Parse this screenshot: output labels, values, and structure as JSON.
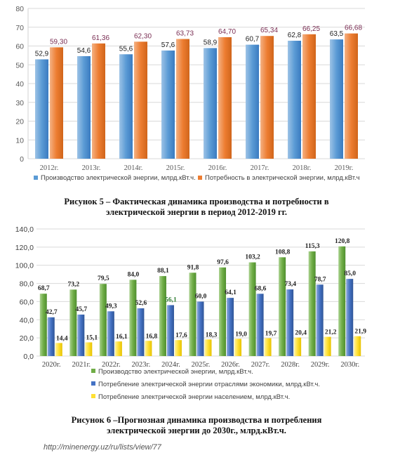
{
  "chart_data": [
    {
      "type": "bar",
      "categories": [
        "2012г.",
        "2013г.",
        "2014г.",
        "2015г.",
        "2016г.",
        "2017г.",
        "2018г.",
        "2019г."
      ],
      "series": [
        {
          "name": "Производство электрической энергии, млрд.кВт.ч.",
          "values": [
            52.9,
            54.6,
            55.6,
            57.6,
            58.9,
            60.7,
            62.8,
            63.5
          ],
          "labels": [
            "52,9",
            "54,6",
            "55,6",
            "57,6",
            "58,9",
            "60,7",
            "62,8",
            "63,5"
          ]
        },
        {
          "name": "Потребность в электрической энергии, млрд.кВт.ч",
          "values": [
            59.3,
            61.36,
            62.3,
            63.73,
            64.7,
            65.34,
            66.25,
            66.68
          ],
          "labels": [
            "59,30",
            "61,36",
            "62,30",
            "63,73",
            "64,70",
            "65,34",
            "66,25",
            "66,68"
          ]
        }
      ],
      "ylim": [
        0,
        80
      ],
      "yticks": [
        "0",
        "10",
        "20",
        "30",
        "40",
        "50",
        "60",
        "70",
        "80"
      ],
      "grid": true,
      "legend": "bottom",
      "colors": {
        "production": "#5b9bd5",
        "demand": "#ed7d31",
        "label_demand": "#7a2e53",
        "label_production": "#222222"
      }
    },
    {
      "type": "bar",
      "categories": [
        "2020г.",
        "2021г.",
        "2022г.",
        "2023г.",
        "2024г.",
        "2025г.",
        "2026г.",
        "2027г.",
        "2028г.",
        "2029г.",
        "2030г."
      ],
      "series": [
        {
          "name": "Производство электрической энергии, млрд.кВт.ч.",
          "values": [
            68.7,
            73.2,
            79.5,
            84.0,
            88.1,
            91.8,
            97.6,
            103.2,
            108.8,
            115.3,
            120.8
          ],
          "labels": [
            "68,7",
            "73,2",
            "79,5",
            "84,0",
            "88,1",
            "91,8",
            "97,6",
            "103,2",
            "108,8",
            "115,3",
            "120,8"
          ]
        },
        {
          "name": "Потребление электрической энергии отраслями экономики, млрд.кВт.ч.",
          "values": [
            42.7,
            45.7,
            49.3,
            52.6,
            56.1,
            60.0,
            64.1,
            68.6,
            73.4,
            78.7,
            85.0
          ],
          "labels": [
            "42,7",
            "45,7",
            "49,3",
            "52,6",
            "56,1",
            "60,0",
            "64,1",
            "68,6",
            "73,4",
            "78,7",
            "85,0"
          ]
        },
        {
          "name": "Потребление электрической энергии населением, млрд.кВт.ч.",
          "values": [
            14.4,
            15.1,
            16.1,
            16.8,
            17.6,
            18.3,
            19.0,
            19.7,
            20.4,
            21.2,
            21.9
          ],
          "labels": [
            "14,4",
            "15,1",
            "16,1",
            "16,8",
            "17,6",
            "18,3",
            "19,0",
            "19,7",
            "20,4",
            "21,2",
            "21,9"
          ]
        }
      ],
      "ylim": [
        0,
        140
      ],
      "yticks": [
        "0,0",
        "20,0",
        "40,0",
        "60,0",
        "80,0",
        "100,0",
        "120,0",
        "140,0"
      ],
      "grid": true,
      "legend": "bottom",
      "colors": {
        "production": "#70ad47",
        "industry": "#4472c4",
        "population": "#ffe033"
      }
    }
  ],
  "captions": {
    "figure5": [
      "Рисунок 5 – Фактическая динамика производства и потребности в",
      "электрической энергии в период 2012-2019 гг."
    ],
    "figure6": [
      "Рисунок 6 –Прогнозная динамика производства и потребления",
      "электрической энергии до 2030г., млрд.кВт.ч."
    ]
  },
  "source": "http://minenergy.uz/ru/lists/view/77"
}
